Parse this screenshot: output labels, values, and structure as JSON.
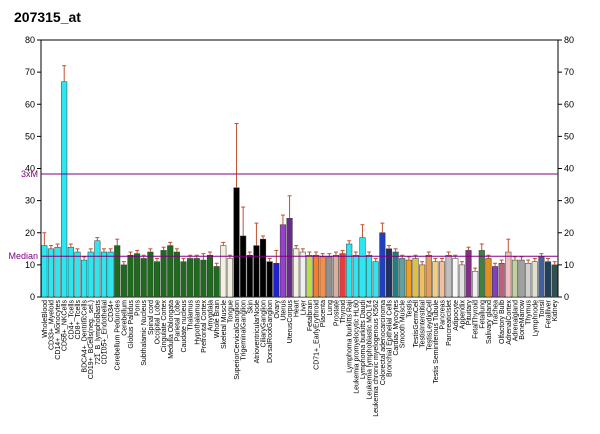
{
  "chart_data": {
    "type": "bar",
    "title": "207315_at",
    "categories": [
      "WholeBlood",
      "CD33+_Myeloid",
      "CD14+_Monocytes",
      "CD56+_NKCells",
      "CD4+_Tcells",
      "CD8+_Tcells",
      "BDCA4+_DentriticCells",
      "CD19+_BCells(neg._sel.)",
      "721_B_lymphoblasts",
      "CD105+_Endothelial",
      "CD34+",
      "Cerebellum Peduncles",
      "Cerebellum",
      "Globus Pallidus",
      "Pons",
      "Subthalamic Nucleus",
      "Spinal cord",
      "Occipital Lobe",
      "Cingulate Cortex",
      "Medulla Oblongata",
      "Parietal Lobe",
      "Caudate nucleus",
      "Thalamus",
      "Hypothalamus",
      "Prefrontal Cortex",
      "Amygdala",
      "Whole Brain",
      "Skeletal Muscle",
      "Tongue",
      "SuperiorCervicalGanglion",
      "TrigeminalGanglion",
      "Skin",
      "AtrioventricularNode",
      "CiliaryGanglion",
      "DorsalRootGanglion",
      "Ovary",
      "Uterus",
      "UterusCorpus",
      "Heart",
      "Liver",
      "Fetalbrain",
      "CD71+_EarlyErythroid",
      "Placenta",
      "Lung",
      "Prostate",
      "Thyroid",
      "Lymphoma burkitts Raji",
      "Leukemia promyelocytic HL60",
      "Lymphoma burkitts Daudi",
      "Leukemia lymphoblastic MOLT4",
      "Leukemia chronic myelogenous K562",
      "Colorectal adenocarcinoma",
      "Bronchial Epithelial Cells",
      "Cardiac Myocytes",
      "Smooth Muscle",
      "Testis",
      "TestisGermCell",
      "TestisInterstitial",
      "TestisLeydigCell",
      "Testis Seminiferous Tubule",
      "Pancreas",
      "PancreaticIslet",
      "Adipocyte",
      "Appendix",
      "Pituitary",
      "FetalThyroid",
      "Fetallung",
      "Salivary gland",
      "Trachea",
      "Olfactory Bulb",
      "AdrenalCortex",
      "Adrenalgland",
      "BoneMarrow",
      "Thymus",
      "Lymphnode",
      "Tonsil",
      "Fetalliver",
      "Kidney"
    ],
    "values": [
      16,
      15,
      15.5,
      67,
      15.5,
      14,
      11.5,
      14,
      17.5,
      14,
      14,
      16,
      10,
      13,
      13.5,
      12,
      14,
      11,
      14.5,
      16,
      14,
      11,
      12,
      12,
      11.5,
      13,
      9.5,
      16,
      12,
      34,
      19,
      13,
      16,
      18,
      11,
      10.5,
      22.5,
      24.5,
      15,
      14,
      13,
      13,
      12.5,
      12.5,
      13,
      13.5,
      16.5,
      13,
      18.5,
      13,
      11,
      20,
      15,
      14,
      12,
      11.5,
      12,
      10,
      13,
      11,
      11,
      13,
      12,
      10,
      14.5,
      8,
      14.5,
      12,
      9.5,
      10.5,
      14,
      11.5,
      11.5,
      10.5,
      11,
      12.5,
      11,
      10
    ],
    "errors": [
      4,
      1,
      1,
      5,
      1,
      1,
      1,
      1,
      1,
      1,
      1,
      2,
      1,
      1,
      1,
      1,
      1,
      1,
      1,
      1,
      1,
      1,
      1,
      1,
      2,
      1,
      1,
      1,
      1,
      20,
      9,
      1,
      7,
      1,
      1,
      4,
      3,
      7,
      1,
      1,
      1,
      1,
      1,
      1,
      1,
      1,
      1,
      1,
      4,
      1,
      1,
      3,
      1,
      1,
      1,
      1,
      1,
      1,
      1,
      1,
      1,
      1,
      1,
      1,
      1,
      1,
      2,
      1,
      1,
      1,
      4,
      1,
      1,
      1,
      1,
      1,
      1,
      1
    ],
    "colors": [
      "#2ee6f0",
      "#2ee6f0",
      "#2ee6f0",
      "#2ee6f0",
      "#2ee6f0",
      "#2ee6f0",
      "#2ee6f0",
      "#2ee6f0",
      "#2ee6f0",
      "#2ee6f0",
      "#2ee6f0",
      "#1e6b1e",
      "#1e6b1e",
      "#1e6b1e",
      "#1e6b1e",
      "#1e6b1e",
      "#1e6b1e",
      "#1e6b1e",
      "#1e6b1e",
      "#1e6b1e",
      "#1e6b1e",
      "#1e6b1e",
      "#1e6b1e",
      "#1e6b1e",
      "#1e6b1e",
      "#1e6b1e",
      "#1e6b1e",
      "#f4f0e0",
      "#f4f0e0",
      "#000000",
      "#000000",
      "#000000",
      "#000000",
      "#000000",
      "#000000",
      "#2020d0",
      "#9a40d0",
      "#6a2a8a",
      "#f4f0e0",
      "#f0f0f0",
      "#b8e040",
      "#f08030",
      "#f09050",
      "#909090",
      "#d8b0a0",
      "#e04040",
      "#2ee6f0",
      "#2ee6f0",
      "#2ee6f0",
      "#2ee6f0",
      "#2ee6f0",
      "#2040c0",
      "#203060",
      "#208080",
      "#60a0a0",
      "#f0a020",
      "#e0c040",
      "#f0c060",
      "#e0a060",
      "#f0d080",
      "#f0c0a0",
      "#c0c0c0",
      "#f8f8f8",
      "#e0e0e0",
      "#803080",
      "#f0f0f0",
      "#408040",
      "#e09020",
      "#8040c0",
      "#c06080",
      "#f0c0c0",
      "#c0d0a0",
      "#a0a0a0",
      "#d0d0d0",
      "#e0e0d0",
      "#4060a0",
      "#204060",
      "#305050"
    ],
    "ylim": [
      0,
      80
    ],
    "yticks": [
      0,
      10,
      20,
      30,
      40,
      50,
      60,
      70,
      80
    ],
    "y2lim": [
      0,
      80
    ],
    "y2ticks": [
      0,
      10,
      20,
      30,
      40,
      50,
      60,
      70,
      80
    ],
    "reference_lines": [
      {
        "label": "3xM",
        "value": 38.3
      },
      {
        "label": "Median",
        "value": 12.7
      }
    ],
    "reference_color": "#800080",
    "error_color": "#c05030"
  }
}
